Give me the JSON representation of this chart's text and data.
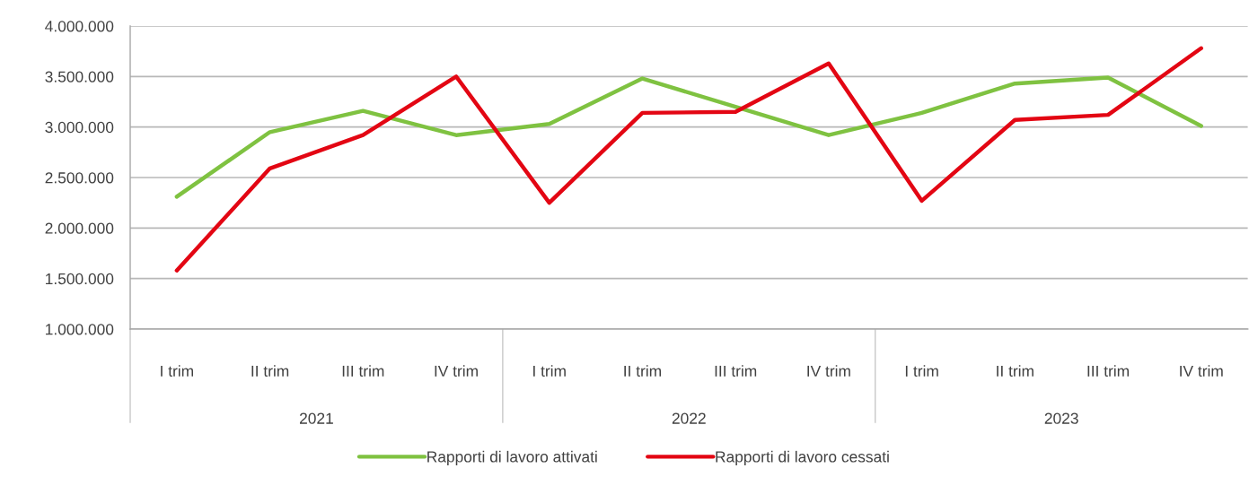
{
  "chart_data": {
    "type": "line",
    "categories": [
      "I trim",
      "II trim",
      "III trim",
      "IV trim",
      "I trim",
      "II trim",
      "III trim",
      "IV trim",
      "I trim",
      "II trim",
      "III trim",
      "IV trim"
    ],
    "annotations": [
      "2021",
      "2022",
      "2023"
    ],
    "series": [
      {
        "name": "Rapporti di lavoro attivati",
        "color": "#7fc241",
        "values": [
          2310000,
          2950000,
          3160000,
          2920000,
          3030000,
          3480000,
          3200000,
          2920000,
          3140000,
          3430000,
          3490000,
          3010000
        ]
      },
      {
        "name": "Rapporti di lavoro cessati",
        "color": "#e30613",
        "values": [
          1580000,
          2590000,
          2920000,
          3500000,
          2250000,
          3140000,
          3150000,
          3630000,
          2270000,
          3070000,
          3120000,
          3780000
        ]
      }
    ],
    "ylim": [
      1000000,
      4000000
    ],
    "yticks": [
      {
        "value": 1000000,
        "label": "1.000.000"
      },
      {
        "value": 1500000,
        "label": "1.500.000"
      },
      {
        "value": 2000000,
        "label": "2.000.000"
      },
      {
        "value": 2500000,
        "label": "2.500.000"
      },
      {
        "value": 3000000,
        "label": "3.000.000"
      },
      {
        "value": 3500000,
        "label": "3.500.000"
      },
      {
        "value": 4000000,
        "label": "4.000.000"
      }
    ],
    "grid": "y",
    "legend": "bottom",
    "line_style": "solid"
  }
}
